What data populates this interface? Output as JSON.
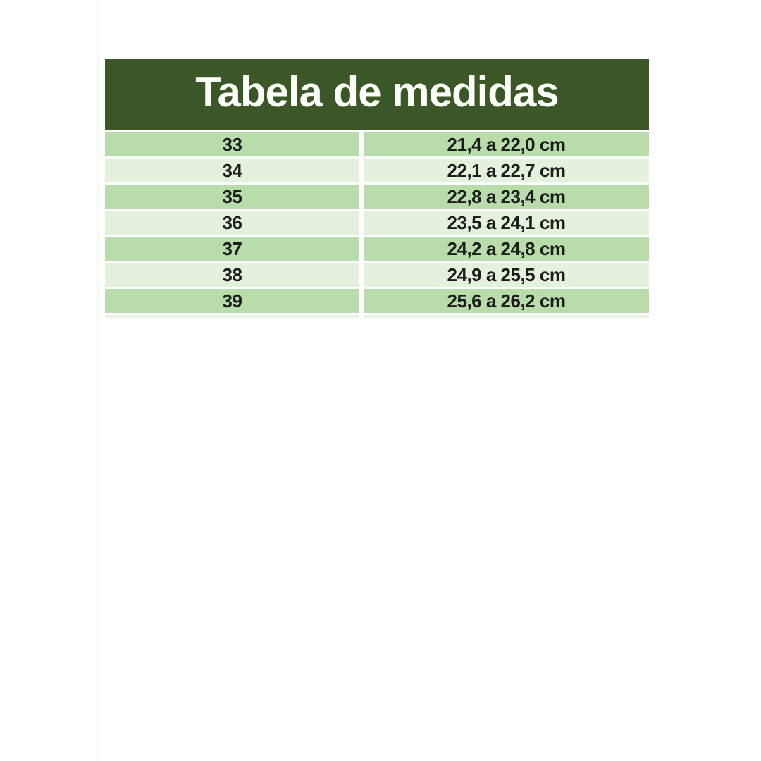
{
  "page": {
    "background_color": "#ffffff"
  },
  "table": {
    "title": "Tabela de medidas",
    "header_bg_color": "#3b5727",
    "title_color": "#fdfdfa",
    "row_color_dark": "#b8dcaa",
    "row_color_light": "#e4f1dc",
    "text_color": "#1c1c1c",
    "rows": [
      {
        "size": "33",
        "range": "21,4 a 22,0 cm"
      },
      {
        "size": "34",
        "range": "22,1 a 22,7 cm"
      },
      {
        "size": "35",
        "range": "22,8 a 23,4 cm"
      },
      {
        "size": "36",
        "range": "23,5 a 24,1 cm"
      },
      {
        "size": "37",
        "range": "24,2 a 24,8 cm"
      },
      {
        "size": "38",
        "range": "24,9 a 25,5 cm"
      },
      {
        "size": "39",
        "range": "25,6 a 26,2 cm"
      }
    ]
  }
}
